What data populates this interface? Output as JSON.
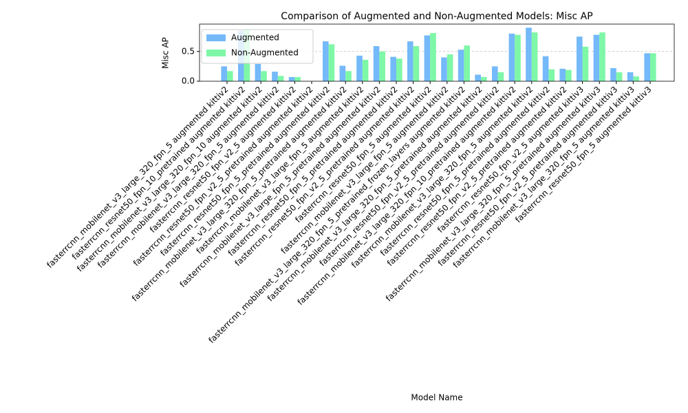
{
  "chart_data": {
    "type": "bar",
    "title": "Comparison of Augmented and Non-Augmented Models: Misc AP",
    "x_label": "Model Name",
    "y_label": "Misc AP",
    "categories": [
      "fasterrcnn_mobilenet_v3_large_320_fpn_5 augmented kittiv2",
      "fasterrcnn_resnet50_fpn_10_pretrained augmented kittiv2",
      "fasterrcnn_mobilenet_v3_large_320_fpn_10 augmented kittiv2",
      "fasterrcnn_mobilenet_v3_large_320_fpn_5 augmented kittiv2",
      "fasterrcnn_resnet50_fpn_v2_5 augmented kittiv2",
      "fasterrcnn_resnet50_fpn_v2_5_pretrained augmented kittiv2",
      "fasterrcnn_resnet50_fpn_5_pretrained augmented kittiv2",
      "fasterrcnn_mobilenet_v3_large_320_fpn_5_pretrained augmented kittiv2",
      "fasterrcnn_mobilenet_v3_large_fpn_5 augmented kittiv2",
      "fasterrcnn_mobilenet_v3_large_fpn_5_pretrained augmented kittiv2",
      "fasterrcnn_resnet50_fpn_5_pretrained augmented kittiv2",
      "fasterrcnn_resnet50_fpn_v2_5_pretrained augmented kittiv2",
      "fasterrcnn_resnet50_fpn_5 augmented kittiv2",
      "fasterrcnn_mobilenet_v3_large_fpn_5 augmented kittiv2",
      "fasterrcnn_mobilenet_v3_large_320_fpn_5_pretrained_frozen_layers augmented kittiv2",
      "fasterrcnn_mobilenet_v3_large_320_fpn_5_pretrained augmented kittiv2",
      "fasterrcnn_resnet50_fpn_v2_5_pretrained augmented kittiv2",
      "fasterrcnn_mobilenet_v3_large_320_fpn_10_pretrained augmented kittiv2",
      "fasterrcnn_mobilenet_v3_large_320_fpn_5 augmented kittiv2",
      "fasterrcnn_resnet50_fpn_5_pretrained augmented kittiv2",
      "fasterrcnn_resnet50_fpn_v2_5_pretrained augmented kittiv2",
      "fasterrcnn_resnet50_fpn_v2_5 augmented kittiv3",
      "fasterrcnn_mobilenet_v3_large_320_fpn_5_pretrained augmented kittiv3",
      "fasterrcnn_resnet50_fpn_v2_5_pretrained augmented kittiv3",
      "fasterrcnn_mobilenet_v3_large_320_fpn_5 augmented kittiv3",
      "fasterrcnn_resnet50_fpn_5 augmented kittiv3"
    ],
    "series": [
      {
        "name": "Augmented",
        "color": "#74b9f9",
        "values": [
          0.25,
          0.85,
          0.29,
          0.16,
          0.07,
          0,
          0.67,
          0.26,
          0.43,
          0.59,
          0.41,
          0.67,
          0.77,
          0.4,
          0.53,
          0.11,
          0.25,
          0.8,
          0.9,
          0.42,
          0.21,
          0.75,
          0.78,
          0.22,
          0.15,
          0.47
        ]
      },
      {
        "name": "Non-Augmented",
        "color": "#7ef7a7",
        "values": [
          0.17,
          0.86,
          0.17,
          0.09,
          0.07,
          0,
          0.62,
          0.17,
          0.36,
          0.5,
          0.38,
          0.59,
          0.81,
          0.45,
          0.6,
          0.07,
          0.15,
          0.78,
          0.82,
          0.2,
          0.19,
          0.58,
          0.82,
          0.15,
          0.08,
          0.47
        ]
      }
    ],
    "ylim": [
      0,
      0.96
    ],
    "yticks": [
      {
        "value": 0,
        "label": "0.0"
      },
      {
        "value": 0.5,
        "label": "0.5"
      }
    ],
    "grid": true,
    "legend": "upper left"
  }
}
